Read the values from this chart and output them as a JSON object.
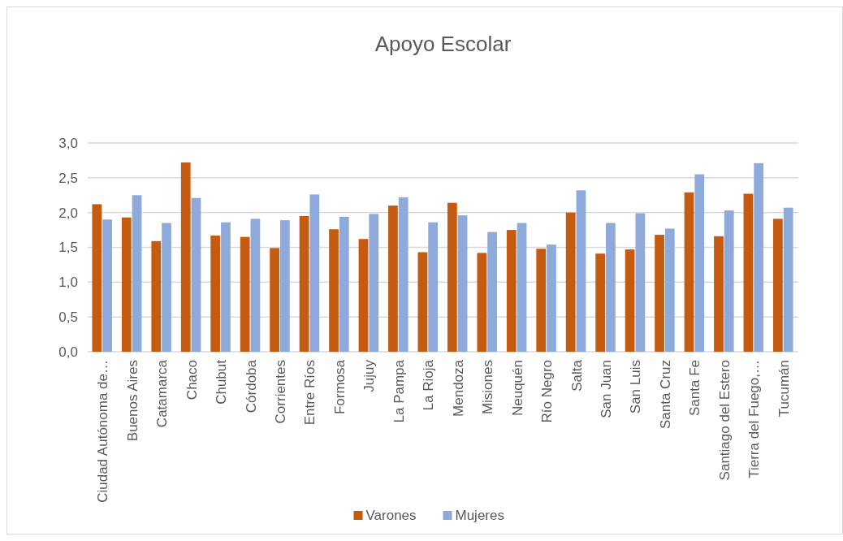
{
  "chart_data": {
    "type": "bar",
    "title": "Apoyo Escolar",
    "categories": [
      "Ciudad Autónoma de…",
      "Buenos Aires",
      "Catamarca",
      "Chaco",
      "Chubut",
      "Córdoba",
      "Corrientes",
      "Entre Ríos",
      "Formosa",
      "Jujuy",
      "La Pampa",
      "La Rioja",
      "Mendoza",
      "Misiones",
      "Neuquén",
      "Río Negro",
      "Salta",
      "San Juan",
      "San Luis",
      "Santa Cruz",
      "Santa Fe",
      "Santiago del Estero",
      "Tierra del Fuego,…",
      "Tucumán"
    ],
    "series": [
      {
        "name": "Varones",
        "color": "#c55a11",
        "values": [
          2.12,
          1.93,
          1.59,
          2.72,
          1.67,
          1.65,
          1.49,
          1.95,
          1.76,
          1.62,
          2.1,
          1.43,
          2.14,
          1.42,
          1.75,
          1.48,
          2.0,
          1.41,
          1.47,
          1.68,
          2.29,
          1.66,
          2.27,
          1.91
        ]
      },
      {
        "name": "Mujeres",
        "color": "#8eaadb",
        "values": [
          1.9,
          2.25,
          1.85,
          2.21,
          1.86,
          1.91,
          1.89,
          2.26,
          1.94,
          1.98,
          2.22,
          1.86,
          1.96,
          1.72,
          1.85,
          1.54,
          2.32,
          1.85,
          1.99,
          1.77,
          2.55,
          2.03,
          2.71,
          2.07
        ]
      }
    ],
    "ylim": [
      0,
      3
    ],
    "yticks": [
      {
        "value": 0,
        "label": "0,0"
      },
      {
        "value": 0.5,
        "label": "0,5"
      },
      {
        "value": 1,
        "label": "1,0"
      },
      {
        "value": 1.5,
        "label": "1,5"
      },
      {
        "value": 2,
        "label": "2,0"
      },
      {
        "value": 2.5,
        "label": "2,5"
      },
      {
        "value": 3,
        "label": "3,0"
      }
    ],
    "grid": "y",
    "legend": "bottom"
  }
}
